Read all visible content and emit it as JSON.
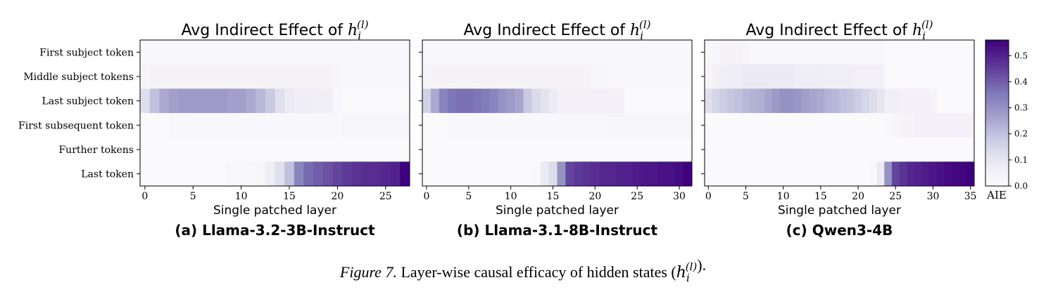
{
  "chart_data": [
    {
      "type": "heatmap",
      "title_prefix": "Avg Indirect Effect of ",
      "title_math": {
        "base": "h",
        "sub": "i",
        "sup": "(l)"
      },
      "xlabel": "Single patched layer",
      "subcaption": "(a) Llama-3.2-3B-Instruct",
      "rows": [
        "First subject token",
        "Middle subject tokens",
        "Last subject token",
        "First subsequent token",
        "Further tokens",
        "Last token"
      ],
      "num_layers": 28,
      "x_ticks": [
        0,
        5,
        10,
        15,
        20,
        25
      ],
      "values": [
        [
          0.02,
          0.02,
          0.02,
          0.02,
          0.02,
          0.02,
          0.02,
          0.02,
          0.02,
          0.02,
          0.02,
          0.02,
          0.02,
          0.02,
          0.02,
          0.02,
          0.02,
          0.02,
          0.02,
          0.02,
          0.02,
          0.02,
          0.02,
          0.02,
          0.02,
          0.02,
          0.02,
          0.02
        ],
        [
          0.03,
          0.04,
          0.04,
          0.04,
          0.04,
          0.04,
          0.04,
          0.04,
          0.04,
          0.04,
          0.04,
          0.04,
          0.04,
          0.04,
          0.04,
          0.04,
          0.04,
          0.04,
          0.04,
          0.04,
          0.03,
          0.02,
          0.02,
          0.02,
          0.02,
          0.02,
          0.02,
          0.02
        ],
        [
          0.12,
          0.2,
          0.25,
          0.27,
          0.28,
          0.28,
          0.28,
          0.28,
          0.28,
          0.27,
          0.27,
          0.25,
          0.22,
          0.18,
          0.12,
          0.08,
          0.07,
          0.07,
          0.06,
          0.06,
          0.02,
          0.01,
          0.01,
          0.01,
          0.01,
          0.01,
          0.01,
          0.01
        ],
        [
          0.01,
          0.01,
          0.01,
          0.02,
          0.02,
          0.02,
          0.02,
          0.02,
          0.02,
          0.02,
          0.02,
          0.02,
          0.02,
          0.02,
          0.02,
          0.02,
          0.02,
          0.02,
          0.02,
          0.02,
          0.02,
          0.03,
          0.03,
          0.03,
          0.03,
          0.03,
          0.03,
          0.03
        ],
        [
          0.01,
          0.01,
          0.01,
          0.01,
          0.01,
          0.01,
          0.01,
          0.01,
          0.01,
          0.01,
          0.01,
          0.01,
          0.01,
          0.01,
          0.01,
          0.01,
          0.01,
          0.01,
          0.01,
          0.01,
          0.01,
          0.01,
          0.01,
          0.01,
          0.01,
          0.01,
          0.01,
          0.01
        ],
        [
          0.01,
          0.01,
          0.01,
          0.01,
          0.01,
          0.01,
          0.01,
          0.01,
          0.01,
          0.02,
          0.02,
          0.02,
          0.03,
          0.07,
          0.12,
          0.2,
          0.33,
          0.38,
          0.4,
          0.42,
          0.44,
          0.46,
          0.47,
          0.48,
          0.48,
          0.49,
          0.5,
          0.56
        ]
      ]
    },
    {
      "type": "heatmap",
      "title_prefix": "Avg Indirect Effect of ",
      "title_math": {
        "base": "h",
        "sub": "i",
        "sup": "(l)"
      },
      "xlabel": "Single patched layer",
      "subcaption": "(b) Llama-3.1-8B-Instruct",
      "rows": [
        "First subject token",
        "Middle subject tokens",
        "Last subject token",
        "First subsequent token",
        "Further tokens",
        "Last token"
      ],
      "num_layers": 32,
      "x_ticks": [
        0,
        5,
        10,
        15,
        20,
        25,
        30
      ],
      "values": [
        [
          0.02,
          0.02,
          0.02,
          0.02,
          0.02,
          0.02,
          0.02,
          0.02,
          0.02,
          0.02,
          0.02,
          0.02,
          0.02,
          0.02,
          0.02,
          0.02,
          0.02,
          0.02,
          0.02,
          0.02,
          0.02,
          0.02,
          0.02,
          0.02,
          0.02,
          0.02,
          0.02,
          0.02,
          0.02,
          0.02,
          0.02,
          0.02
        ],
        [
          0.03,
          0.04,
          0.04,
          0.04,
          0.04,
          0.04,
          0.04,
          0.04,
          0.04,
          0.04,
          0.04,
          0.04,
          0.04,
          0.04,
          0.04,
          0.04,
          0.04,
          0.04,
          0.04,
          0.04,
          0.03,
          0.03,
          0.02,
          0.02,
          0.02,
          0.02,
          0.02,
          0.02,
          0.02,
          0.02,
          0.02,
          0.02
        ],
        [
          0.16,
          0.25,
          0.33,
          0.36,
          0.37,
          0.37,
          0.36,
          0.35,
          0.33,
          0.3,
          0.28,
          0.26,
          0.18,
          0.14,
          0.11,
          0.08,
          0.05,
          0.05,
          0.05,
          0.05,
          0.05,
          0.05,
          0.05,
          0.05,
          0.01,
          0.01,
          0.01,
          0.01,
          0.01,
          0.01,
          0.01,
          0.01
        ],
        [
          0.01,
          0.01,
          0.01,
          0.02,
          0.02,
          0.02,
          0.02,
          0.02,
          0.02,
          0.02,
          0.02,
          0.02,
          0.02,
          0.02,
          0.02,
          0.02,
          0.02,
          0.02,
          0.02,
          0.02,
          0.02,
          0.02,
          0.03,
          0.03,
          0.03,
          0.03,
          0.03,
          0.03,
          0.03,
          0.03,
          0.03,
          0.03
        ],
        [
          0.01,
          0.01,
          0.01,
          0.01,
          0.01,
          0.01,
          0.01,
          0.01,
          0.01,
          0.01,
          0.01,
          0.01,
          0.01,
          0.01,
          0.01,
          0.01,
          0.01,
          0.01,
          0.01,
          0.01,
          0.01,
          0.01,
          0.01,
          0.01,
          0.01,
          0.01,
          0.01,
          0.01,
          0.01,
          0.01,
          0.01,
          0.01
        ],
        [
          0.01,
          0.01,
          0.01,
          0.01,
          0.01,
          0.01,
          0.01,
          0.01,
          0.01,
          0.01,
          0.01,
          0.01,
          0.01,
          0.02,
          0.08,
          0.13,
          0.3,
          0.44,
          0.46,
          0.47,
          0.48,
          0.49,
          0.49,
          0.5,
          0.5,
          0.51,
          0.52,
          0.52,
          0.53,
          0.53,
          0.54,
          0.56
        ]
      ]
    },
    {
      "type": "heatmap",
      "title_prefix": "Avg Indirect Effect of ",
      "title_math": {
        "base": "h",
        "sub": "i",
        "sup": "(l)"
      },
      "xlabel": "Single patched layer",
      "subcaption": "(c) Qwen3-4B",
      "rows": [
        "First subject token",
        "Middle subject tokens",
        "Last subject token",
        "First subsequent token",
        "Further tokens",
        "Last token"
      ],
      "num_layers": 36,
      "x_ticks": [
        0,
        5,
        10,
        15,
        20,
        25,
        30,
        35
      ],
      "values": [
        [
          0.02,
          0.03,
          0.04,
          0.04,
          0.04,
          0.03,
          0.02,
          0.02,
          0.02,
          0.02,
          0.02,
          0.02,
          0.02,
          0.02,
          0.02,
          0.02,
          0.02,
          0.02,
          0.02,
          0.02,
          0.02,
          0.02,
          0.02,
          0.02,
          0.01,
          0.01,
          0.01,
          0.01,
          0.01,
          0.01,
          0.01,
          0.01,
          0.01,
          0.01,
          0.01,
          0.01
        ],
        [
          0.03,
          0.05,
          0.06,
          0.07,
          0.07,
          0.08,
          0.08,
          0.08,
          0.08,
          0.08,
          0.08,
          0.08,
          0.07,
          0.07,
          0.07,
          0.07,
          0.06,
          0.06,
          0.06,
          0.06,
          0.05,
          0.05,
          0.05,
          0.05,
          0.01,
          0.01,
          0.01,
          0.01,
          0.01,
          0.01,
          0.01,
          0.01,
          0.01,
          0.01,
          0.01,
          0.01
        ],
        [
          0.12,
          0.15,
          0.17,
          0.19,
          0.2,
          0.22,
          0.23,
          0.24,
          0.26,
          0.28,
          0.3,
          0.3,
          0.29,
          0.27,
          0.26,
          0.25,
          0.23,
          0.22,
          0.2,
          0.19,
          0.17,
          0.15,
          0.13,
          0.1,
          0.06,
          0.06,
          0.05,
          0.05,
          0.05,
          0.05,
          0.04,
          0.01,
          0.01,
          0.01,
          0.01,
          0.01
        ],
        [
          0.01,
          0.01,
          0.01,
          0.01,
          0.01,
          0.01,
          0.01,
          0.01,
          0.01,
          0.01,
          0.01,
          0.01,
          0.01,
          0.01,
          0.01,
          0.01,
          0.01,
          0.01,
          0.01,
          0.01,
          0.01,
          0.01,
          0.01,
          0.01,
          0.02,
          0.03,
          0.04,
          0.04,
          0.05,
          0.05,
          0.05,
          0.05,
          0.05,
          0.05,
          0.05,
          0.05
        ],
        [
          0.01,
          0.01,
          0.01,
          0.01,
          0.01,
          0.01,
          0.01,
          0.01,
          0.01,
          0.01,
          0.01,
          0.01,
          0.01,
          0.01,
          0.01,
          0.01,
          0.01,
          0.01,
          0.01,
          0.01,
          0.01,
          0.01,
          0.01,
          0.01,
          0.01,
          0.01,
          0.01,
          0.01,
          0.01,
          0.01,
          0.01,
          0.01,
          0.01,
          0.01,
          0.01,
          0.01
        ],
        [
          0.01,
          0.01,
          0.01,
          0.01,
          0.01,
          0.01,
          0.01,
          0.01,
          0.01,
          0.01,
          0.01,
          0.01,
          0.01,
          0.01,
          0.01,
          0.01,
          0.01,
          0.01,
          0.01,
          0.01,
          0.01,
          0.01,
          0.02,
          0.08,
          0.3,
          0.44,
          0.47,
          0.49,
          0.5,
          0.51,
          0.52,
          0.53,
          0.54,
          0.55,
          0.55,
          0.56
        ]
      ]
    }
  ],
  "colorbar": {
    "label": "AIE",
    "ticks": [
      0.0,
      0.1,
      0.2,
      0.3,
      0.4,
      0.5
    ],
    "range": [
      0.0,
      0.56
    ],
    "colors": [
      "#fcfbfd",
      "#efedf5",
      "#dadaeb",
      "#bcbddc",
      "#9e9ac8",
      "#807dba",
      "#6a51a3",
      "#54278f",
      "#3f007d"
    ]
  },
  "caption": {
    "fig_label": "Figure 7.",
    "text": " Layer-wise causal efficacy of hidden states (",
    "math": {
      "base": "h",
      "sub": "i",
      "sup": "(l)"
    },
    "end": ")."
  }
}
